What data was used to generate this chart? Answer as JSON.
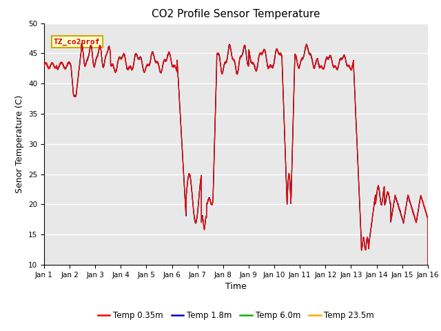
{
  "title": "CO2 Profile Sensor Temperature",
  "xlabel": "Time",
  "ylabel": "Senor Temperature (C)",
  "ylim": [
    10,
    50
  ],
  "xlim": [
    0,
    15
  ],
  "xtick_labels": [
    "Jan 1",
    "Jan 2",
    "Jan 3",
    "Jan 4",
    "Jan 5",
    "Jan 6",
    "Jan 7",
    "Jan 8",
    "Jan 9",
    "Jan 10",
    "Jan 11",
    "Jan 12",
    "Jan 13",
    "Jan 14",
    "Jan 15",
    "Jan 16"
  ],
  "ytick_values": [
    10,
    15,
    20,
    25,
    30,
    35,
    40,
    45,
    50
  ],
  "annotation_text": "TZ_co2prof",
  "annotation_text_color": "#cc0000",
  "annotation_bg_color": "#ffffcc",
  "annotation_border_color": "#ccaa00",
  "legend_entries": [
    "Temp 0.35m",
    "Temp 1.8m",
    "Temp 6.0m",
    "Temp 23.5m"
  ],
  "line_colors": [
    "#ff0000",
    "#0000bb",
    "#00bb00",
    "#ffaa00"
  ],
  "plot_bg_color": "#e8e8e8",
  "grid_color": "#ffffff",
  "title_fontsize": 11,
  "axis_label_fontsize": 9,
  "tick_fontsize": 7.5,
  "line_width": 0.9
}
